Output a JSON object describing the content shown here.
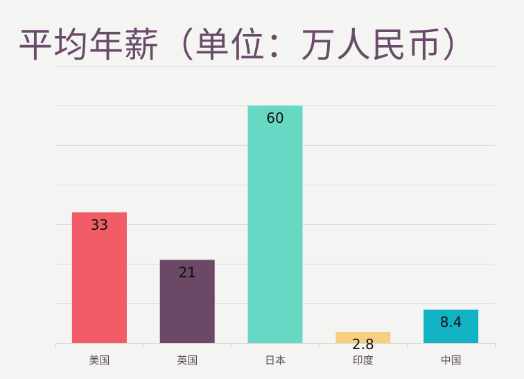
{
  "chart_data": {
    "type": "bar",
    "title": "平均年薪（单位：万人民币）",
    "xlabel": "",
    "ylabel": "",
    "categories": [
      "美国",
      "英国",
      "日本",
      "印度",
      "中国"
    ],
    "values": [
      33,
      21,
      60,
      2.8,
      8.4
    ],
    "value_labels": [
      "33",
      "21",
      "60",
      "2.8",
      "8.4"
    ],
    "colors": [
      "#f25c67",
      "#6b4866",
      "#67d8c4",
      "#f7cf7e",
      "#11b2c4"
    ],
    "ylim": [
      0,
      70
    ],
    "gridlines": [
      0,
      10,
      20,
      30,
      40,
      50,
      60,
      70
    ],
    "grid": true,
    "legend": "none"
  }
}
